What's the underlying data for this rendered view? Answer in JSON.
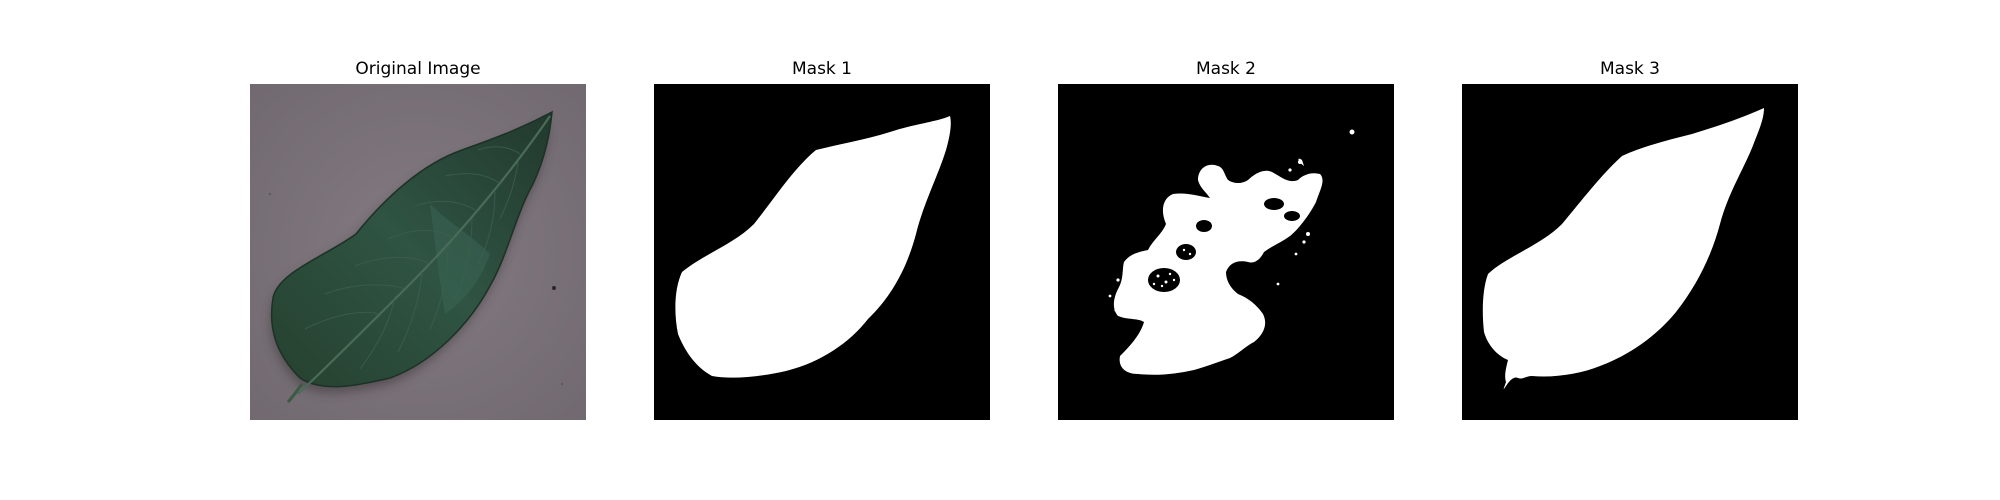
{
  "figure": {
    "panels": [
      {
        "title": "Original Image"
      },
      {
        "title": "Mask 1"
      },
      {
        "title": "Mask 2"
      },
      {
        "title": "Mask 3"
      }
    ]
  },
  "colors": {
    "background": "#ffffff",
    "mask_foreground": "#ffffff",
    "mask_background": "#000000",
    "leaf_dark": "#243d31",
    "leaf_mid": "#2e5240",
    "surface_gray": "#7e767d"
  }
}
